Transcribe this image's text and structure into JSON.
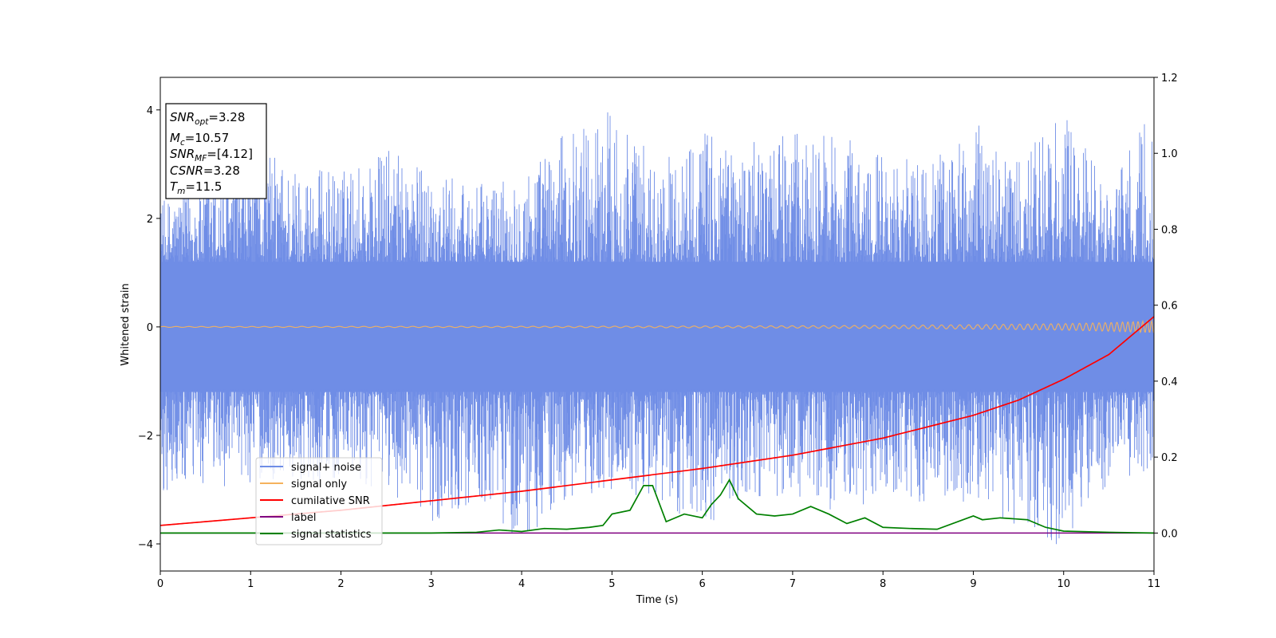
{
  "chart_data": {
    "type": "line",
    "title": "",
    "xlabel": "Time (s)",
    "ylabel": "Whitened strain",
    "xlim": [
      0,
      11
    ],
    "ylim": [
      -4.5,
      4.6
    ],
    "y2lim": [
      -0.1,
      1.2
    ],
    "xticks": [
      0,
      1,
      2,
      3,
      4,
      5,
      6,
      7,
      8,
      9,
      10,
      11
    ],
    "yticks": [
      -4,
      -2,
      0,
      2,
      4
    ],
    "y2ticks": [
      "0.0",
      "0.2",
      "0.4",
      "0.6",
      "0.8",
      "1.0",
      "1.2"
    ],
    "legend_position": "lower-left",
    "annotation": [
      {
        "name": "SNR",
        "sub": "opt",
        "value": "=3.28"
      },
      {
        "name": "M",
        "sub": "c",
        "value": "=10.57"
      },
      {
        "name": "SNR",
        "sub": "MF",
        "value": "=[4.12]"
      },
      {
        "name": "CSNR",
        "sub": "",
        "value": "=3.28"
      },
      {
        "name": "T",
        "sub": "m",
        "value": "=11.5"
      }
    ],
    "series": [
      {
        "name": "signal+ noise",
        "color": "#6f8de6",
        "axis": "left",
        "style": "band",
        "x": [
          0,
          0.5,
          1,
          1.5,
          2,
          2.5,
          3,
          3.5,
          4,
          4.5,
          5,
          5.5,
          6,
          6.5,
          7,
          7.5,
          8,
          8.5,
          9,
          9.5,
          10,
          10.5,
          11
        ],
        "upper_envelope": [
          2.3,
          2.8,
          3.4,
          3.0,
          2.9,
          3.3,
          2.9,
          2.6,
          2.9,
          3.6,
          4.15,
          3.0,
          3.7,
          3.4,
          3.6,
          3.5,
          3.3,
          3.0,
          3.8,
          3.1,
          3.95,
          2.6,
          4.05
        ],
        "lower_envelope": [
          -3.2,
          -3.0,
          -2.9,
          -2.8,
          -2.9,
          -3.0,
          -3.6,
          -3.2,
          -4.05,
          -3.3,
          -3.0,
          -3.3,
          -3.7,
          -3.4,
          -3.1,
          -3.5,
          -3.2,
          -3.3,
          -3.2,
          -3.7,
          -4.1,
          -2.9,
          -2.6
        ]
      },
      {
        "name": "signal only",
        "color": "#f5b25c",
        "axis": "left",
        "style": "chirp",
        "x": [
          0,
          1,
          2,
          3,
          4,
          5,
          6,
          7,
          8,
          9,
          10,
          10.5,
          11
        ],
        "amplitude": [
          0.008,
          0.009,
          0.01,
          0.011,
          0.012,
          0.014,
          0.017,
          0.021,
          0.028,
          0.04,
          0.06,
          0.08,
          0.11
        ]
      },
      {
        "name": "cumilative SNR",
        "color": "#ff0000",
        "axis": "right",
        "x": [
          0,
          1,
          2,
          3,
          4,
          5,
          6,
          7,
          8,
          9,
          9.5,
          10,
          10.5,
          11
        ],
        "y": [
          0.02,
          0.04,
          0.06,
          0.085,
          0.11,
          0.14,
          0.17,
          0.205,
          0.25,
          0.31,
          0.35,
          0.405,
          0.47,
          0.57
        ]
      },
      {
        "name": "label",
        "color": "#800080",
        "axis": "right",
        "x": [
          0,
          11
        ],
        "y": [
          0.0,
          0.0
        ]
      },
      {
        "name": "signal statistics",
        "color": "#008000",
        "axis": "right",
        "x": [
          0,
          0.5,
          1,
          1.5,
          2,
          2.5,
          3,
          3.5,
          3.75,
          4,
          4.25,
          4.5,
          4.75,
          4.9,
          5,
          5.2,
          5.35,
          5.45,
          5.6,
          5.8,
          6,
          6.1,
          6.2,
          6.3,
          6.4,
          6.6,
          6.8,
          7,
          7.2,
          7.4,
          7.6,
          7.8,
          8,
          8.3,
          8.6,
          9,
          9.1,
          9.3,
          9.6,
          9.8,
          10,
          10.5,
          11
        ],
        "y": [
          0.0,
          0.0,
          0.0,
          0.0,
          0.0,
          0.0,
          0.0,
          0.002,
          0.008,
          0.004,
          0.012,
          0.01,
          0.015,
          0.02,
          0.05,
          0.06,
          0.125,
          0.125,
          0.03,
          0.05,
          0.04,
          0.075,
          0.1,
          0.14,
          0.09,
          0.05,
          0.045,
          0.05,
          0.07,
          0.05,
          0.025,
          0.04,
          0.015,
          0.012,
          0.01,
          0.045,
          0.035,
          0.04,
          0.035,
          0.015,
          0.005,
          0.002,
          0.0
        ]
      }
    ]
  }
}
